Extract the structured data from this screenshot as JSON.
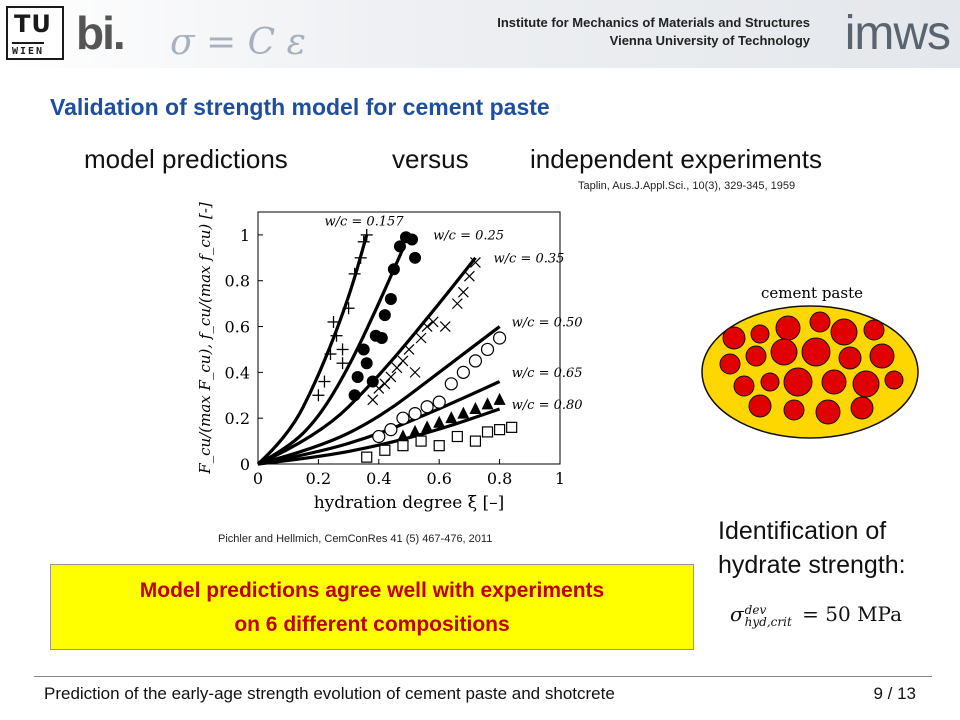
{
  "header": {
    "tu_logo_top": "TU",
    "tu_logo_bottom": "WIEN",
    "bi_logo": "bi.",
    "formula": "σ = C ε",
    "institute": "Institute for Mechanics of Materials and Structures",
    "university": "Vienna University of Technology",
    "imws_logo": "imws"
  },
  "slide": {
    "title": "Validation of strength model for cement paste",
    "sub_left": "model predictions",
    "sub_mid": "versus",
    "sub_right": "independent experiments",
    "ref_top": "Taplin, Aus.J.Appl.Sci., 10(3), 329-345, 1959",
    "ref_bottom": "Pichler and Hellmich, CemConRes 41 (5) 467-476,  2011",
    "conclusion_line1": "Model predictions agree well with experiments",
    "conclusion_line2": "on 6 different compositions",
    "ident_line1": "Identification of",
    "ident_line2": "hydrate strength:",
    "sigma_formula": "σ_hyd,crit^dev = 50 MPa",
    "sigma_main": "σ",
    "sigma_sup": "dev",
    "sigma_sub": "hyd,crit",
    "sigma_rhs": "= 50 MPa",
    "diagram_label": "cement paste"
  },
  "footer": {
    "text": "Prediction of the early-age strength evolution of cement paste and shotcrete",
    "page": "9 / 13"
  },
  "chart_data": {
    "type": "scatter",
    "xlabel": "hydration degree ξ [–]",
    "ylabel": "F_cu/(max F_cu), f_cu/(max f_cu) [-]",
    "xlim": [
      0,
      1
    ],
    "ylim": [
      0,
      1.1
    ],
    "x_ticks": [
      "0",
      "0.2",
      "0.4",
      "0.6",
      "0.8",
      "1"
    ],
    "y_ticks": [
      "0",
      "0.2",
      "0.4",
      "0.6",
      "0.8",
      "1"
    ],
    "curves": [
      {
        "label": "w/c = 0.157",
        "points": [
          [
            0,
            0
          ],
          [
            0.1,
            0.12
          ],
          [
            0.2,
            0.38
          ],
          [
            0.3,
            0.72
          ],
          [
            0.36,
            1.0
          ]
        ]
      },
      {
        "label": "w/c = 0.25",
        "points": [
          [
            0,
            0
          ],
          [
            0.1,
            0.07
          ],
          [
            0.2,
            0.2
          ],
          [
            0.3,
            0.42
          ],
          [
            0.4,
            0.7
          ],
          [
            0.48,
            0.94
          ]
        ]
      },
      {
        "label": "w/c = 0.35",
        "points": [
          [
            0,
            0
          ],
          [
            0.2,
            0.12
          ],
          [
            0.4,
            0.38
          ],
          [
            0.6,
            0.7
          ],
          [
            0.72,
            0.9
          ]
        ]
      },
      {
        "label": "w/c = 0.50",
        "points": [
          [
            0,
            0
          ],
          [
            0.2,
            0.07
          ],
          [
            0.4,
            0.2
          ],
          [
            0.6,
            0.4
          ],
          [
            0.8,
            0.6
          ]
        ]
      },
      {
        "label": "w/c = 0.65",
        "points": [
          [
            0,
            0
          ],
          [
            0.2,
            0.05
          ],
          [
            0.4,
            0.13
          ],
          [
            0.6,
            0.24
          ],
          [
            0.8,
            0.36
          ]
        ]
      },
      {
        "label": "w/c = 0.80",
        "points": [
          [
            0,
            0
          ],
          [
            0.2,
            0.03
          ],
          [
            0.4,
            0.08
          ],
          [
            0.6,
            0.15
          ],
          [
            0.8,
            0.24
          ]
        ]
      }
    ],
    "series": [
      {
        "marker": "plus",
        "points": [
          [
            0.2,
            0.3
          ],
          [
            0.22,
            0.36
          ],
          [
            0.24,
            0.48
          ],
          [
            0.25,
            0.62
          ],
          [
            0.26,
            0.56
          ],
          [
            0.28,
            0.5
          ],
          [
            0.3,
            0.68
          ],
          [
            0.32,
            0.83
          ],
          [
            0.34,
            0.9
          ],
          [
            0.36,
            1.0
          ],
          [
            0.35,
            0.97
          ],
          [
            0.28,
            0.44
          ]
        ]
      },
      {
        "marker": "filled-circle",
        "points": [
          [
            0.32,
            0.3
          ],
          [
            0.33,
            0.38
          ],
          [
            0.35,
            0.5
          ],
          [
            0.36,
            0.44
          ],
          [
            0.38,
            0.36
          ],
          [
            0.39,
            0.56
          ],
          [
            0.41,
            0.55
          ],
          [
            0.42,
            0.65
          ],
          [
            0.44,
            0.72
          ],
          [
            0.45,
            0.85
          ],
          [
            0.47,
            0.95
          ],
          [
            0.49,
            0.99
          ],
          [
            0.51,
            0.98
          ],
          [
            0.52,
            0.9
          ]
        ]
      },
      {
        "marker": "cross",
        "points": [
          [
            0.38,
            0.28
          ],
          [
            0.4,
            0.33
          ],
          [
            0.42,
            0.35
          ],
          [
            0.44,
            0.38
          ],
          [
            0.46,
            0.42
          ],
          [
            0.48,
            0.45
          ],
          [
            0.5,
            0.5
          ],
          [
            0.52,
            0.4
          ],
          [
            0.54,
            0.55
          ],
          [
            0.56,
            0.6
          ],
          [
            0.58,
            0.62
          ],
          [
            0.62,
            0.6
          ],
          [
            0.66,
            0.7
          ],
          [
            0.68,
            0.75
          ],
          [
            0.7,
            0.82
          ],
          [
            0.72,
            0.88
          ]
        ]
      },
      {
        "marker": "open-circle",
        "points": [
          [
            0.4,
            0.12
          ],
          [
            0.44,
            0.15
          ],
          [
            0.48,
            0.2
          ],
          [
            0.52,
            0.22
          ],
          [
            0.56,
            0.25
          ],
          [
            0.6,
            0.27
          ],
          [
            0.64,
            0.35
          ],
          [
            0.68,
            0.4
          ],
          [
            0.72,
            0.45
          ],
          [
            0.76,
            0.5
          ],
          [
            0.8,
            0.55
          ]
        ]
      },
      {
        "marker": "filled-triangle",
        "points": [
          [
            0.48,
            0.12
          ],
          [
            0.52,
            0.14
          ],
          [
            0.56,
            0.16
          ],
          [
            0.6,
            0.18
          ],
          [
            0.64,
            0.2
          ],
          [
            0.68,
            0.22
          ],
          [
            0.72,
            0.24
          ],
          [
            0.76,
            0.26
          ],
          [
            0.8,
            0.28
          ]
        ]
      },
      {
        "marker": "open-square",
        "points": [
          [
            0.36,
            0.03
          ],
          [
            0.42,
            0.06
          ],
          [
            0.48,
            0.08
          ],
          [
            0.54,
            0.1
          ],
          [
            0.6,
            0.08
          ],
          [
            0.66,
            0.12
          ],
          [
            0.72,
            0.1
          ],
          [
            0.76,
            0.14
          ],
          [
            0.8,
            0.15
          ],
          [
            0.84,
            0.16
          ]
        ]
      }
    ],
    "grid": false,
    "legend": "inline curve labels"
  },
  "colors": {
    "title": "#1f4e9e",
    "conclusion_bg": "#ffff00",
    "conclusion_text": "#c00000",
    "paste_fill": "#ffd700",
    "grain_fill": "#e00000"
  }
}
